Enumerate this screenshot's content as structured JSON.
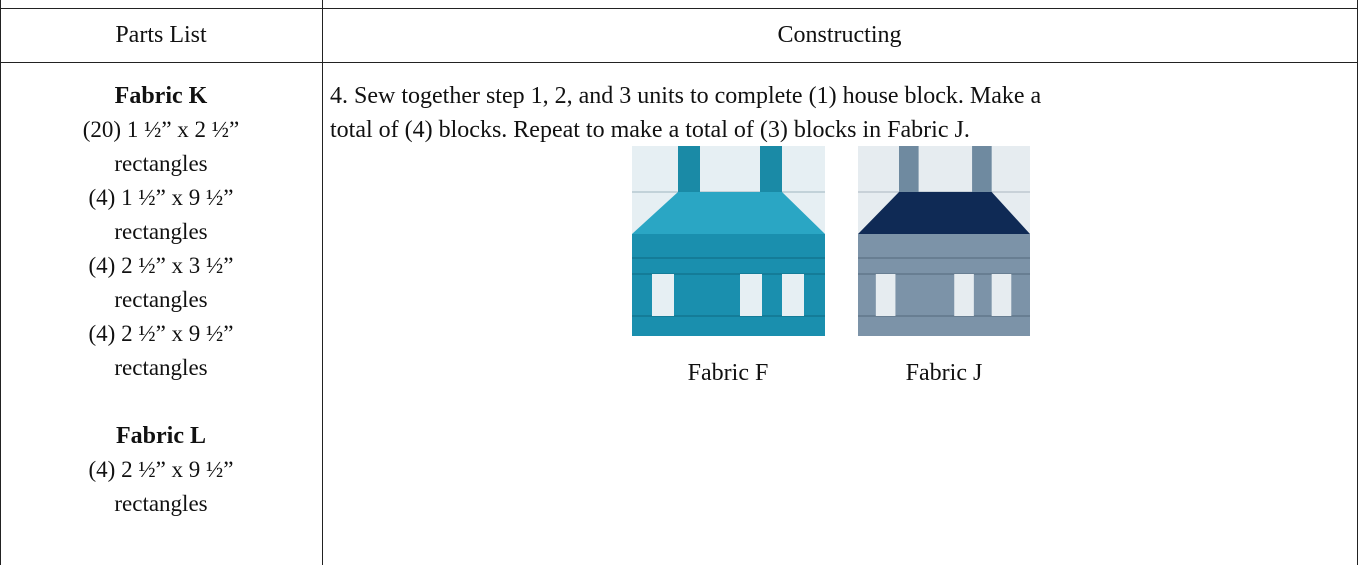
{
  "table": {
    "header": [
      "Parts List",
      "Constructing"
    ],
    "parts": [
      {
        "fabric": "Fabric K",
        "lines": [
          "(20) 1 ½” x 2 ½”",
          "rectangles",
          "(4) 1 ½” x 9 ½”",
          "rectangles",
          "(4) 2 ½” x 3 ½”",
          "rectangles",
          "(4) 2 ½” x 9 ½”",
          "rectangles"
        ]
      },
      {
        "fabric": "Fabric L",
        "lines": [
          "(4) 2 ½” x 9 ½”",
          "rectangles"
        ]
      }
    ],
    "instructions": [
      "4.  Sew together step 1, 2, and 3 units to complete (1) house block.  Make a",
      "total of (4) blocks.  Repeat to make a total of (3) blocks in Fabric J."
    ],
    "figures": [
      {
        "caption": "Fabric F"
      },
      {
        "caption": "Fabric J"
      }
    ]
  }
}
